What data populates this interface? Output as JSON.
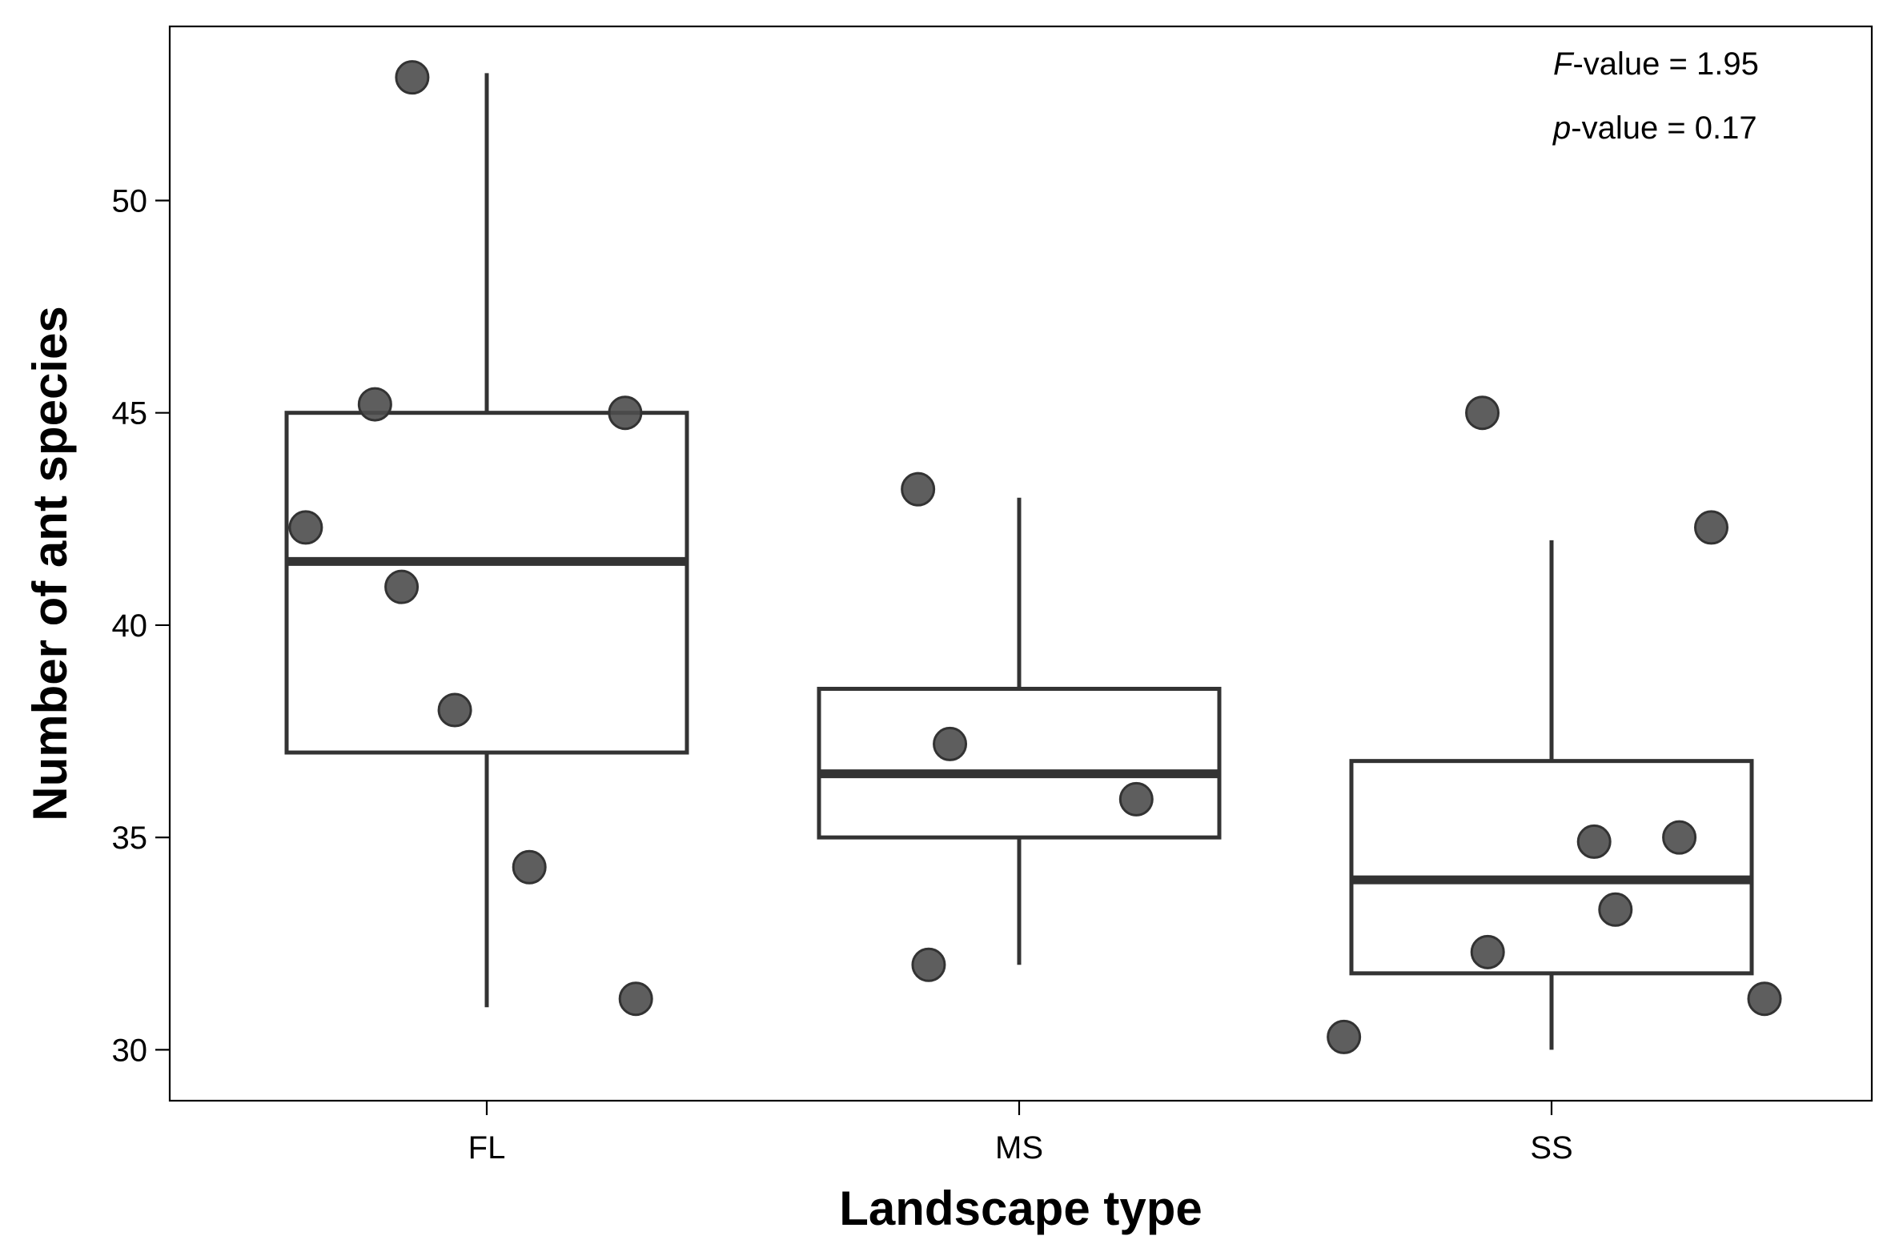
{
  "chart_data": {
    "type": "box",
    "xlabel": "Landscape type",
    "ylabel": "Number of ant species",
    "ylim": [
      28.8,
      54.1
    ],
    "yticks": [
      30,
      35,
      40,
      45,
      50
    ],
    "grid": false,
    "categories": [
      "FL",
      "MS",
      "SS"
    ],
    "boxes": [
      {
        "category": "FL",
        "whisker_low": 31,
        "q1": 37,
        "median": 41.5,
        "q3": 45,
        "whisker_high": 53
      },
      {
        "category": "MS",
        "whisker_low": 32,
        "q1": 35,
        "median": 36.5,
        "q3": 38.5,
        "whisker_high": 43
      },
      {
        "category": "SS",
        "whisker_low": 30,
        "q1": 31.8,
        "median": 34,
        "q3": 36.8,
        "whisker_high": 42
      }
    ],
    "points": [
      {
        "category": "FL",
        "jitter": -0.34,
        "y": 42.3
      },
      {
        "category": "FL",
        "jitter": -0.21,
        "y": 45.2
      },
      {
        "category": "FL",
        "jitter": -0.16,
        "y": 40.9
      },
      {
        "category": "FL",
        "jitter": -0.14,
        "y": 52.9
      },
      {
        "category": "FL",
        "jitter": -0.06,
        "y": 38.0
      },
      {
        "category": "FL",
        "jitter": 0.08,
        "y": 34.3
      },
      {
        "category": "FL",
        "jitter": 0.26,
        "y": 45.0
      },
      {
        "category": "FL",
        "jitter": 0.28,
        "y": 31.2
      },
      {
        "category": "MS",
        "jitter": -0.19,
        "y": 43.2
      },
      {
        "category": "MS",
        "jitter": -0.17,
        "y": 32.0
      },
      {
        "category": "MS",
        "jitter": -0.13,
        "y": 37.2
      },
      {
        "category": "MS",
        "jitter": 0.22,
        "y": 35.9
      },
      {
        "category": "SS",
        "jitter": -0.39,
        "y": 30.3
      },
      {
        "category": "SS",
        "jitter": -0.13,
        "y": 45.0
      },
      {
        "category": "SS",
        "jitter": -0.12,
        "y": 32.3
      },
      {
        "category": "SS",
        "jitter": 0.08,
        "y": 34.9
      },
      {
        "category": "SS",
        "jitter": 0.12,
        "y": 33.3
      },
      {
        "category": "SS",
        "jitter": 0.24,
        "y": 35.0
      },
      {
        "category": "SS",
        "jitter": 0.3,
        "y": 42.3
      },
      {
        "category": "SS",
        "jitter": 0.4,
        "y": 31.2
      }
    ],
    "annotations": [
      {
        "italic": "F",
        "text": "-value = 1.95"
      },
      {
        "italic": "p",
        "text": "-value = 0.17"
      }
    ]
  }
}
